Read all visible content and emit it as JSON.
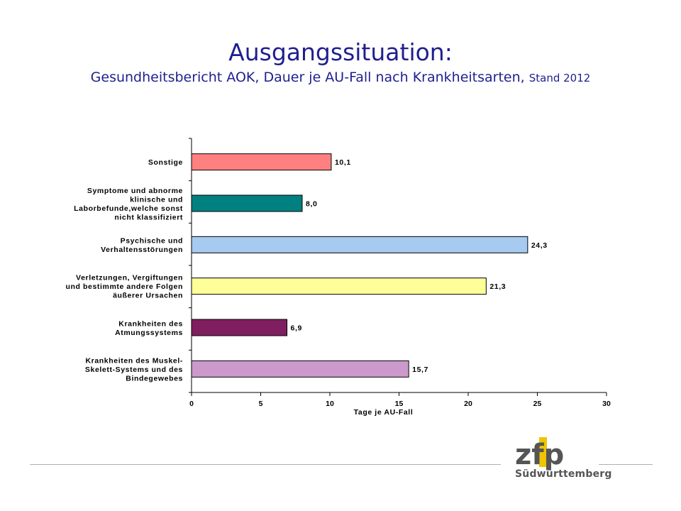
{
  "title": {
    "main": "Ausgangssituation:",
    "sub_prefix": "Gesundheitsbericht AOK, Dauer je AU-Fall nach  Krankheitsarten,",
    "sub_small": "Stand 2012"
  },
  "chart_data": {
    "type": "bar",
    "orientation": "horizontal",
    "categories": [
      [
        "Sonstige"
      ],
      [
        "Symptome und abnorme",
        "klinische und",
        "Laborbefunde,welche sonst",
        "nicht klassifiziert"
      ],
      [
        "Psychische und",
        "Verhaltensstörungen"
      ],
      [
        "Verletzungen, Vergiftungen",
        "und bestimmte andere Folgen",
        "äußerer Ursachen"
      ],
      [
        "Krankheiten des",
        "Atmungssystems"
      ],
      [
        "Krankheiten des Muskel-",
        "Skelett-Systems und des",
        "Bindegewebes"
      ]
    ],
    "values": [
      10.1,
      8.0,
      24.3,
      21.3,
      6.9,
      15.7
    ],
    "value_labels": [
      "10,1",
      "8,0",
      "24,3",
      "21,3",
      "6,9",
      "15,7"
    ],
    "colors": [
      "#ff8080",
      "#008080",
      "#a6caf0",
      "#ffff99",
      "#7f1f5f",
      "#cc99cc"
    ],
    "xlim": [
      0,
      30
    ],
    "xticks": [
      0,
      5,
      10,
      15,
      20,
      25,
      30
    ],
    "xtick_labels": [
      "0",
      "5",
      "10",
      "15",
      "20",
      "25",
      "30"
    ],
    "xlabel": "Tage je AU-Fall",
    "ylabel": "",
    "title": ""
  },
  "footer": {
    "logo_letters": "zfp",
    "logo_text": "Südwürttemberg",
    "accent_color": "#f0c400"
  }
}
